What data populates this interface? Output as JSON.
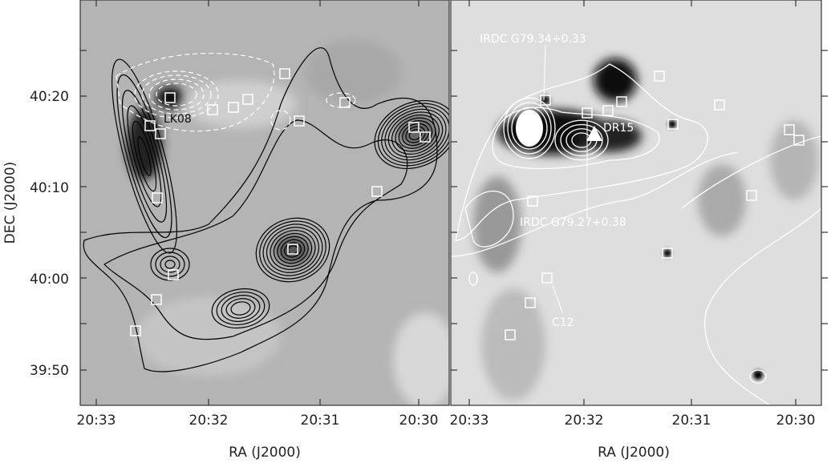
{
  "figure": {
    "left_panel": {
      "xlabel": "RA (J2000)",
      "ylabel": "DEC (J2000)",
      "x_ticks": [
        "20:33",
        "20:32",
        "20:31",
        "20:30"
      ],
      "y_ticks": [
        "40:20",
        "40:10",
        "40:00",
        "39:50"
      ],
      "annotations": [
        "LK08"
      ],
      "contour_colors": {
        "solid": "#000000",
        "dashed": "#ffffff"
      }
    },
    "right_panel": {
      "xlabel": "RA (J2000)",
      "x_ticks": [
        "20:33",
        "20:32",
        "20:31",
        "20:30"
      ],
      "annotations": [
        "IRDC G79.34+0.33",
        "DR15",
        "IRDC G79.27+0.38",
        "C12"
      ],
      "contour_color": "#ffffff"
    }
  }
}
